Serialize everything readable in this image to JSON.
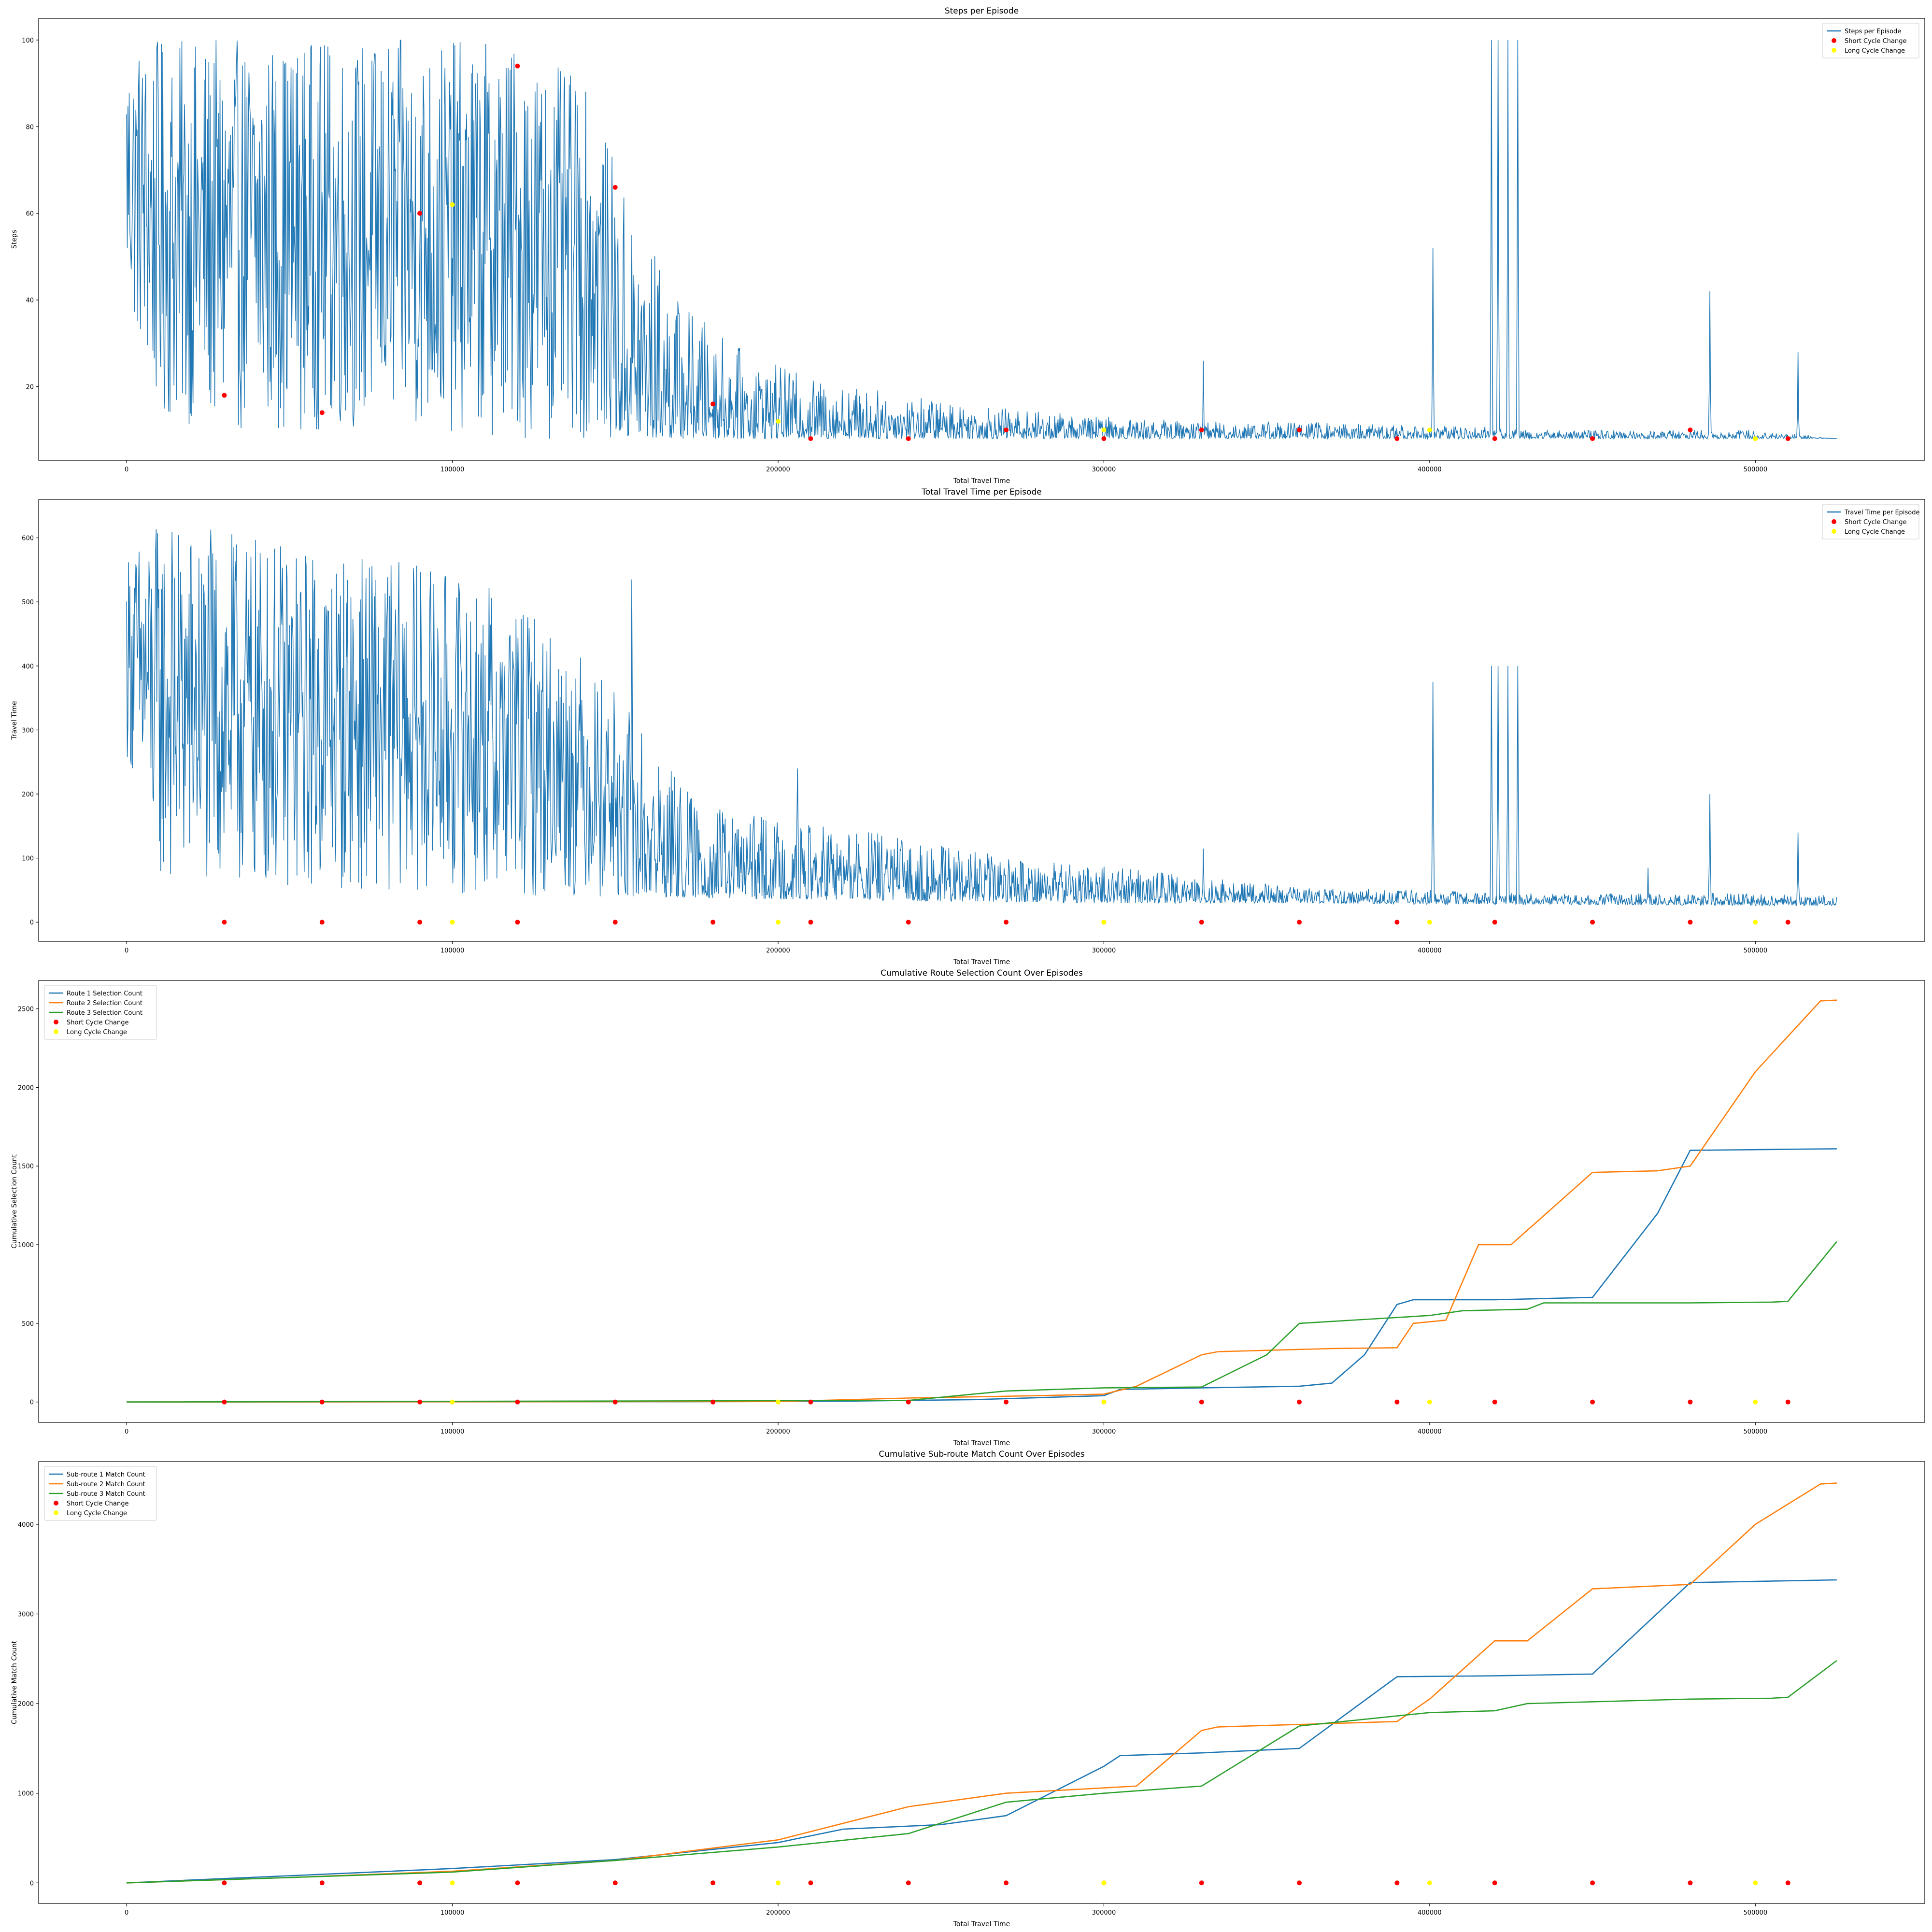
{
  "chart_data": [
    {
      "type": "line",
      "title": "Steps per Episode",
      "xlabel": "Total Travel Time",
      "ylabel": "Steps",
      "xlim": [
        -27000,
        552000
      ],
      "ylim": [
        3,
        105
      ],
      "xticks": [
        0,
        100000,
        200000,
        300000,
        400000,
        500000
      ],
      "yticks": [
        20,
        40,
        60,
        80,
        100
      ],
      "legend_position": "upper right",
      "legend": [
        "Steps per Episode",
        "Short Cycle Change",
        "Long Cycle Change"
      ],
      "series_kind": "noisy",
      "series_color": "#1f77b4",
      "series": [
        {
          "name": "Steps per Episode",
          "x": [
            0,
            10000,
            30000,
            60000,
            90000,
            120000,
            140000,
            155000,
            170000,
            190000,
            210000,
            240000,
            270000,
            300000,
            330000,
            360000,
            400000,
            420000,
            430000,
            500000,
            525000
          ],
          "low": [
            40,
            12,
            10,
            10,
            10,
            8,
            8,
            8,
            8,
            8,
            8,
            8,
            8,
            8,
            8,
            8,
            8,
            8,
            8,
            8,
            8
          ],
          "high": [
            100,
            100,
            100,
            100,
            100,
            100,
            90,
            62,
            40,
            28,
            22,
            18,
            15,
            13,
            12,
            12,
            11,
            11,
            10,
            10,
            8
          ]
        }
      ],
      "spikes": [
        [
          330500,
          26
        ],
        [
          401000,
          52
        ],
        [
          419000,
          100
        ],
        [
          421000,
          100
        ],
        [
          424000,
          100
        ],
        [
          427000,
          100
        ],
        [
          486000,
          42
        ],
        [
          513000,
          28
        ]
      ],
      "short_cycle_change": {
        "x": [
          30000,
          60000,
          90000,
          120000,
          150000,
          180000,
          210000,
          240000,
          270000,
          300000,
          330000,
          360000,
          390000,
          420000,
          450000,
          480000,
          510000
        ],
        "y": [
          18,
          14,
          60,
          94,
          66,
          16,
          8,
          8,
          10,
          8,
          10,
          10,
          8,
          8,
          8,
          10,
          8
        ]
      },
      "long_cycle_change": {
        "x": [
          100000,
          200000,
          300000,
          400000,
          500000
        ],
        "y": [
          62,
          12,
          10,
          10,
          8
        ]
      }
    },
    {
      "type": "line",
      "title": "Total Travel Time per Episode",
      "xlabel": "Total Travel Time",
      "ylabel": "Travel Time",
      "xlim": [
        -27000,
        552000
      ],
      "ylim": [
        -30,
        660
      ],
      "xticks": [
        0,
        100000,
        200000,
        300000,
        400000,
        500000
      ],
      "yticks": [
        0,
        100,
        200,
        300,
        400,
        500,
        600
      ],
      "legend_position": "upper right",
      "legend": [
        "Travel Time per Episode",
        "Short Cycle Change",
        "Long Cycle Change"
      ],
      "series_kind": "noisy",
      "series_color": "#1f77b4",
      "series": [
        {
          "name": "Travel Time per Episode",
          "x": [
            0,
            10000,
            30000,
            60000,
            90000,
            115000,
            140000,
            155000,
            175000,
            200000,
            230000,
            260000,
            300000,
            330000,
            360000,
            400000,
            430000,
            500000,
            525000
          ],
          "low": [
            260,
            60,
            50,
            50,
            50,
            40,
            40,
            40,
            38,
            36,
            34,
            32,
            30,
            30,
            30,
            28,
            28,
            26,
            26
          ],
          "high": [
            580,
            630,
            610,
            580,
            560,
            520,
            420,
            330,
            190,
            160,
            140,
            110,
            90,
            70,
            55,
            50,
            45,
            45,
            40
          ]
        }
      ],
      "spikes": [
        [
          155000,
          535
        ],
        [
          206000,
          240
        ],
        [
          330500,
          115
        ],
        [
          401000,
          375
        ],
        [
          419000,
          400
        ],
        [
          421000,
          400
        ],
        [
          424000,
          400
        ],
        [
          427000,
          400
        ],
        [
          486000,
          200
        ],
        [
          513000,
          140
        ],
        [
          467000,
          85
        ]
      ],
      "short_cycle_change": {
        "x": [
          30000,
          60000,
          90000,
          120000,
          150000,
          180000,
          210000,
          240000,
          270000,
          300000,
          330000,
          360000,
          390000,
          420000,
          450000,
          480000,
          510000
        ],
        "y": [
          0,
          0,
          0,
          0,
          0,
          0,
          0,
          0,
          0,
          0,
          0,
          0,
          0,
          0,
          0,
          0,
          0
        ]
      },
      "long_cycle_change": {
        "x": [
          100000,
          200000,
          300000,
          400000,
          500000
        ],
        "y": [
          0,
          0,
          0,
          0,
          0
        ]
      }
    },
    {
      "type": "line",
      "title": "Cumulative Route Selection Count Over Episodes",
      "xlabel": "Total Travel Time",
      "ylabel": "Cumulative Selection Count",
      "xlim": [
        -27000,
        552000
      ],
      "ylim": [
        -130,
        2680
      ],
      "xticks": [
        0,
        100000,
        200000,
        300000,
        400000,
        500000
      ],
      "yticks": [
        0,
        500,
        1000,
        1500,
        2000,
        2500
      ],
      "legend_position": "upper left",
      "legend": [
        "Route 1 Selection Count",
        "Route 2 Selection Count",
        "Route 3 Selection Count",
        "Short Cycle Change",
        "Long Cycle Change"
      ],
      "series_kind": "smooth",
      "series": [
        {
          "name": "Route 1 Selection Count",
          "color": "#1f77b4",
          "x": [
            0,
            180000,
            220000,
            260000,
            300000,
            305000,
            330000,
            360000,
            370000,
            380000,
            390000,
            395000,
            420000,
            450000,
            470000,
            480000,
            525000
          ],
          "y": [
            0,
            2,
            5,
            15,
            40,
            80,
            90,
            100,
            120,
            300,
            620,
            650,
            650,
            665,
            1200,
            1600,
            1610
          ]
        },
        {
          "name": "Route 2 Selection Count",
          "color": "#ff7f0e",
          "x": [
            0,
            200000,
            240000,
            280000,
            300000,
            310000,
            330000,
            335000,
            370000,
            390000,
            395000,
            405000,
            415000,
            425000,
            450000,
            470000,
            480000,
            500000,
            520000,
            525000
          ],
          "y": [
            0,
            3,
            25,
            40,
            50,
            100,
            300,
            320,
            340,
            345,
            500,
            520,
            1000,
            1000,
            1460,
            1470,
            1500,
            2100,
            2550,
            2555
          ]
        },
        {
          "name": "Route 3 Selection Count",
          "color": "#2ca02c",
          "x": [
            0,
            240000,
            270000,
            300000,
            330000,
            350000,
            360000,
            400000,
            410000,
            430000,
            435000,
            480000,
            505000,
            510000,
            525000
          ],
          "y": [
            0,
            10,
            70,
            90,
            95,
            300,
            500,
            550,
            580,
            590,
            630,
            630,
            635,
            640,
            1020
          ]
        }
      ],
      "short_cycle_change": {
        "x": [
          30000,
          60000,
          90000,
          120000,
          150000,
          180000,
          210000,
          240000,
          270000,
          300000,
          330000,
          360000,
          390000,
          420000,
          450000,
          480000,
          510000
        ],
        "y": [
          0,
          0,
          0,
          0,
          0,
          0,
          0,
          0,
          0,
          0,
          0,
          0,
          0,
          0,
          0,
          0,
          0
        ]
      },
      "long_cycle_change": {
        "x": [
          100000,
          200000,
          300000,
          400000,
          500000
        ],
        "y": [
          0,
          0,
          0,
          0,
          0
        ]
      }
    },
    {
      "type": "line",
      "title": "Cumulative Sub-route Match Count Over Episodes",
      "xlabel": "Total Travel Time",
      "ylabel": "Cumulative Match Count",
      "xlim": [
        -27000,
        552000
      ],
      "ylim": [
        -230,
        4700
      ],
      "xticks": [
        0,
        100000,
        200000,
        300000,
        400000,
        500000
      ],
      "yticks": [
        0,
        1000,
        2000,
        3000,
        4000
      ],
      "legend_position": "upper left",
      "legend": [
        "Sub-route 1 Match Count",
        "Sub-route 2 Match Count",
        "Sub-route 3 Match Count",
        "Short Cycle Change",
        "Long Cycle Change"
      ],
      "series_kind": "smooth",
      "series": [
        {
          "name": "Sub-route 1 Match Count",
          "color": "#1f77b4",
          "x": [
            0,
            50000,
            100000,
            150000,
            200000,
            220000,
            250000,
            270000,
            300000,
            305000,
            330000,
            360000,
            390000,
            420000,
            450000,
            480000,
            525000
          ],
          "y": [
            0,
            80,
            160,
            260,
            450,
            600,
            650,
            750,
            1300,
            1420,
            1450,
            1500,
            2300,
            2310,
            2330,
            3350,
            3380
          ]
        },
        {
          "name": "Sub-route 2 Match Count",
          "color": "#ff7f0e",
          "x": [
            0,
            50000,
            100000,
            150000,
            200000,
            240000,
            270000,
            310000,
            330000,
            335000,
            390000,
            400000,
            420000,
            430000,
            450000,
            480000,
            500000,
            520000,
            525000
          ],
          "y": [
            0,
            60,
            130,
            250,
            480,
            850,
            1000,
            1080,
            1700,
            1740,
            1800,
            2050,
            2700,
            2700,
            3280,
            3330,
            4000,
            4450,
            4460
          ]
        },
        {
          "name": "Sub-route 3 Match Count",
          "color": "#2ca02c",
          "x": [
            0,
            50000,
            100000,
            150000,
            200000,
            240000,
            270000,
            300000,
            330000,
            360000,
            400000,
            420000,
            430000,
            480000,
            505000,
            510000,
            525000
          ],
          "y": [
            0,
            60,
            120,
            250,
            400,
            550,
            900,
            1000,
            1080,
            1750,
            1900,
            1920,
            2000,
            2050,
            2060,
            2070,
            2480
          ]
        }
      ],
      "short_cycle_change": {
        "x": [
          30000,
          60000,
          90000,
          120000,
          150000,
          180000,
          210000,
          240000,
          270000,
          300000,
          330000,
          360000,
          390000,
          420000,
          450000,
          480000,
          510000
        ],
        "y": [
          0,
          0,
          0,
          0,
          0,
          0,
          0,
          0,
          0,
          0,
          0,
          0,
          0,
          0,
          0,
          0,
          0
        ]
      },
      "long_cycle_change": {
        "x": [
          100000,
          200000,
          300000,
          400000,
          500000
        ],
        "y": [
          0,
          0,
          0,
          0,
          0
        ]
      }
    }
  ],
  "colors": {
    "short_cycle_change": "#ff0000",
    "long_cycle_change": "#ffff00",
    "default_series": "#1f77b4"
  }
}
